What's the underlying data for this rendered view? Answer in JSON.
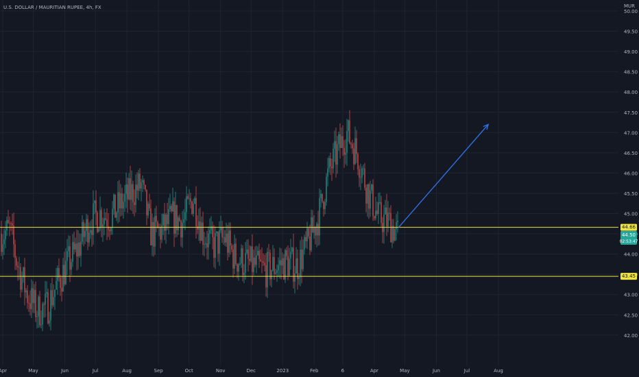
{
  "header": {
    "symbol_title": "U.S. DOLLAR / MAURITIAN RUPEE, 4h, FX"
  },
  "price_axis": {
    "currency": "MUR",
    "ticks": [
      "50.00",
      "49.50",
      "49.00",
      "48.50",
      "48.00",
      "47.50",
      "47.00",
      "46.50",
      "46.00",
      "45.50",
      "45.00",
      "44.50",
      "44.00",
      "43.50",
      "43.00",
      "42.50",
      "42.00"
    ]
  },
  "time_axis": {
    "ticks": [
      "Apr",
      "May",
      "Jun",
      "Jul",
      "Aug",
      "Sep",
      "Oct",
      "Nov",
      "Dec",
      "2023",
      "Feb",
      "6",
      "Apr",
      "May",
      "Jun",
      "Jul",
      "Aug"
    ]
  },
  "badges": {
    "upper_level": "44.66",
    "last_price": "44.50",
    "countdown": "02:53:47",
    "lower_level": "43.45"
  },
  "colors": {
    "background": "#141823",
    "grid": "#1f2430",
    "up": "#26a69a",
    "down": "#ef5350",
    "level_line": "#f0e442",
    "arrow": "#2f6fe0",
    "axis_text": "#b2b5be"
  },
  "chart_data": {
    "type": "candlestick",
    "title": "U.S. DOLLAR / MAURITIAN RUPEE, 4h, FX",
    "ylim": [
      41.9,
      50.1
    ],
    "y_scale": "linear",
    "grid": true,
    "horizontal_levels": [
      44.66,
      43.45
    ],
    "last_price": 44.5,
    "projection_arrow": {
      "from": [
        "2023-04-25",
        44.66
      ],
      "to": [
        "2023-07-22",
        47.2
      ]
    },
    "series": [
      {
        "close_path": [
          [
            "2022-04-01",
            44.5
          ],
          [
            "2022-04-08",
            44.6
          ],
          [
            "2022-04-15",
            43.8
          ],
          [
            "2022-04-25",
            43.0
          ],
          [
            "2022-05-05",
            42.6
          ],
          [
            "2022-05-15",
            42.7
          ],
          [
            "2022-05-25",
            43.3
          ],
          [
            "2022-06-05",
            43.8
          ],
          [
            "2022-06-15",
            44.2
          ],
          [
            "2022-06-25",
            44.8
          ],
          [
            "2022-07-05",
            45.0
          ],
          [
            "2022-07-15",
            44.9
          ],
          [
            "2022-07-25",
            45.2
          ],
          [
            "2022-08-05",
            45.5
          ],
          [
            "2022-08-15",
            45.7
          ],
          [
            "2022-08-25",
            44.5
          ],
          [
            "2022-09-05",
            44.6
          ],
          [
            "2022-09-15",
            44.9
          ],
          [
            "2022-09-25",
            44.8
          ],
          [
            "2022-10-05",
            45.4
          ],
          [
            "2022-10-15",
            44.5
          ],
          [
            "2022-10-25",
            44.2
          ],
          [
            "2022-11-05",
            44.4
          ],
          [
            "2022-11-15",
            43.9
          ],
          [
            "2022-11-25",
            43.8
          ],
          [
            "2022-12-05",
            43.7
          ],
          [
            "2022-12-15",
            43.6
          ],
          [
            "2022-12-25",
            43.7
          ],
          [
            "2023-01-05",
            43.8
          ],
          [
            "2023-01-15",
            43.7
          ],
          [
            "2023-01-25",
            44.2
          ],
          [
            "2023-02-05",
            44.9
          ],
          [
            "2023-02-15",
            46.0
          ],
          [
            "2023-02-25",
            46.6
          ],
          [
            "2023-03-05",
            47.0
          ],
          [
            "2023-03-15",
            46.5
          ],
          [
            "2023-03-25",
            45.6
          ],
          [
            "2023-04-05",
            44.9
          ],
          [
            "2023-04-15",
            44.8
          ],
          [
            "2023-04-24",
            44.5
          ]
        ]
      }
    ]
  }
}
